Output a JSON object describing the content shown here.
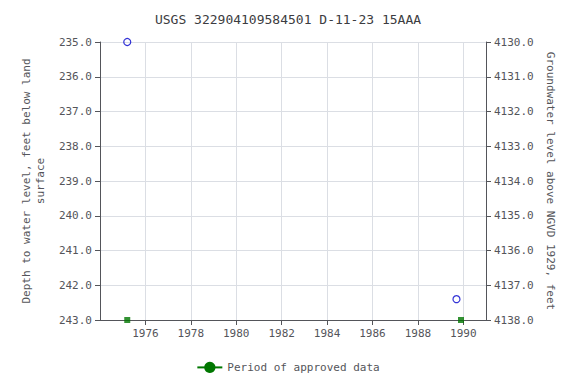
{
  "chart_data": {
    "type": "scatter",
    "title": "USGS 322904109584501 D-11-23 15AAA",
    "ylabel": "Depth to water level, feet below land\nsurface",
    "y2label": "Groundwater level above NGVD 1929, feet",
    "xlim": [
      1974,
      1991
    ],
    "xticks": [
      1976,
      1978,
      1980,
      1982,
      1984,
      1986,
      1988,
      1990
    ],
    "ylim": [
      243.0,
      235.0
    ],
    "yticks": [
      {
        "value": 235,
        "label": "235.0"
      },
      {
        "value": 236,
        "label": "236.0"
      },
      {
        "value": 237,
        "label": "237.0"
      },
      {
        "value": 238,
        "label": "238.0"
      },
      {
        "value": 239,
        "label": "239.0"
      },
      {
        "value": 240,
        "label": "240.0"
      },
      {
        "value": 241,
        "label": "241.0"
      },
      {
        "value": 242,
        "label": "242.0"
      },
      {
        "value": 243,
        "label": "243.0"
      }
    ],
    "y2lim": [
      4138.0,
      4130.0
    ],
    "y2ticks": [
      {
        "value": 4130,
        "label": "4130.0"
      },
      {
        "value": 4131,
        "label": "4131.0"
      },
      {
        "value": 4132,
        "label": "4132.0"
      },
      {
        "value": 4133,
        "label": "4133.0"
      },
      {
        "value": 4134,
        "label": "4134.0"
      },
      {
        "value": 4135,
        "label": "4135.0"
      },
      {
        "value": 4136,
        "label": "4136.0"
      },
      {
        "value": 4137,
        "label": "4137.0"
      },
      {
        "value": 4138,
        "label": "4138.0"
      }
    ],
    "grid": true,
    "legend": "bottom",
    "series": [
      {
        "type": "scatter",
        "color": "#0000cc",
        "marker": "circle_open",
        "x": [
          1975.2,
          1989.7
        ],
        "values": [
          235.0,
          242.4
        ]
      },
      {
        "type": "scatter",
        "color": "#007700",
        "marker": "square",
        "x": [
          1975.2,
          1989.9
        ],
        "values": [
          243.0,
          243.0
        ]
      },
      {
        "type": "line",
        "name": "Period of approved data",
        "color": "#007700",
        "line_style": "solid",
        "x": [],
        "values": []
      }
    ]
  }
}
